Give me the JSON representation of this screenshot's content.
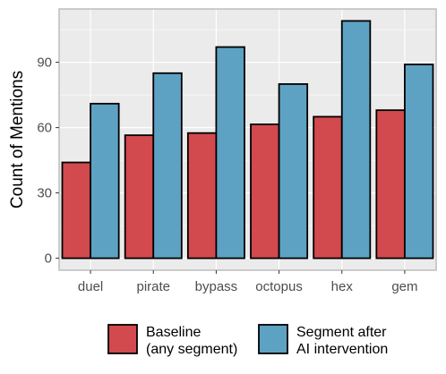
{
  "chart_data": {
    "type": "bar",
    "categories": [
      "duel",
      "pirate",
      "bypass",
      "octopus",
      "hex",
      "gem"
    ],
    "series": [
      {
        "name": "Baseline\n(any segment)",
        "values": [
          44,
          56.5,
          57.5,
          61.5,
          65,
          68
        ],
        "color": "#d2494e"
      },
      {
        "name": "Segment after\nAI intervention",
        "values": [
          71,
          85,
          97,
          80,
          109,
          89
        ],
        "color": "#5ea2c3"
      }
    ],
    "ylabel": "Count of Mentions",
    "xlabel": "",
    "yticks": [
      0,
      30,
      60,
      90
    ],
    "ylim": [
      -5.5,
      114.5
    ],
    "grid": true,
    "legend_position": "bottom",
    "panel_background": "#ebebeb",
    "grid_color": "#ffffff"
  }
}
